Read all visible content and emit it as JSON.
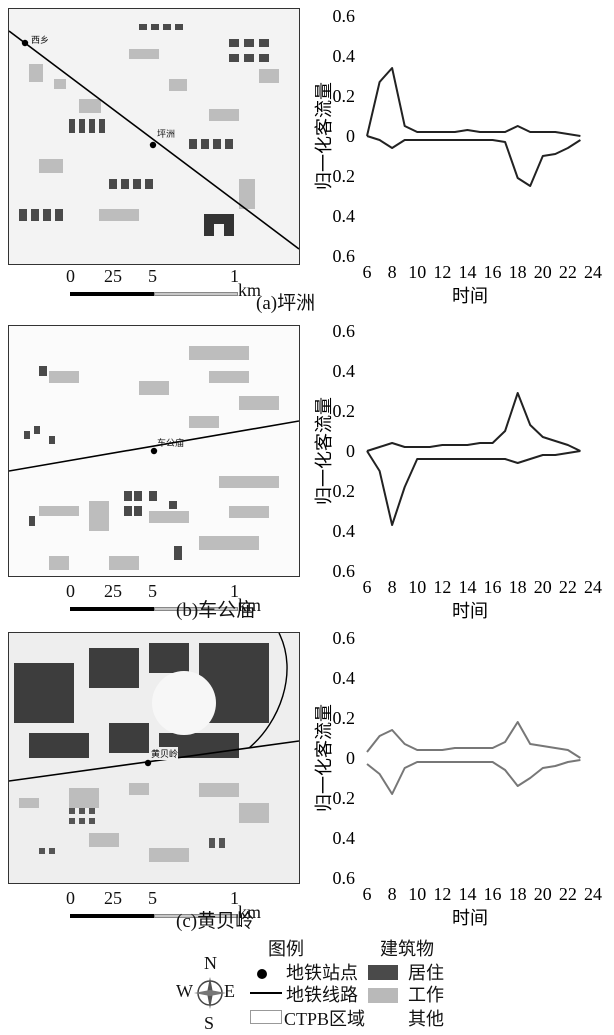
{
  "panels": [
    {
      "station": "坪洲",
      "caption": "(a)坪洲",
      "map_station_labels": [
        "西乡",
        "坪洲"
      ]
    },
    {
      "station": "车公庙",
      "caption": "(b)车公庙",
      "map_station_labels": [
        "车公庙"
      ]
    },
    {
      "station": "黄贝岭",
      "caption": "(c)黄贝岭",
      "map_station_labels": [
        "黄贝岭"
      ]
    }
  ],
  "scale": {
    "labels": [
      "0",
      "25",
      "5",
      "1"
    ],
    "unit": "km"
  },
  "legend": {
    "title": "图例",
    "buildings_title": "建筑物",
    "station": "地铁站点",
    "line": "地铁线路",
    "ctpb": "CTPB区域",
    "residential": "居住",
    "work": "工作",
    "other": "其他",
    "compass": {
      "n": "N",
      "s": "S",
      "w": "W",
      "e": "E"
    },
    "colors": {
      "residential": "#4a4a4a",
      "work": "#b9b9b9",
      "other": "#ffffff"
    }
  },
  "chart_data": [
    {
      "type": "line",
      "xlabel": "时间",
      "ylabel": "归一化客流量",
      "x_ticks": [
        "6",
        "8",
        "10",
        "12",
        "14",
        "16",
        "18",
        "20",
        "22",
        "24"
      ],
      "y_ticks": [
        "0.6",
        "0.4",
        "0.2",
        "0",
        "0.2",
        "0.4",
        "0.6"
      ],
      "xlim": [
        6,
        24
      ],
      "ylim": [
        -0.6,
        0.6
      ],
      "line_color": "#222222",
      "series": [
        {
          "x": [
            6,
            7,
            8,
            9,
            10,
            11,
            12,
            13,
            14,
            15,
            16,
            17,
            18,
            19,
            20,
            21,
            22,
            23
          ],
          "y": [
            0.0,
            0.27,
            0.34,
            0.05,
            0.02,
            0.02,
            0.02,
            0.02,
            0.03,
            0.02,
            0.02,
            0.02,
            0.05,
            0.02,
            0.02,
            0.02,
            0.01,
            0.0
          ]
        },
        {
          "x": [
            6,
            7,
            8,
            9,
            10,
            11,
            12,
            13,
            14,
            15,
            16,
            17,
            18,
            19,
            20,
            21,
            22,
            23
          ],
          "y": [
            0.0,
            -0.02,
            -0.06,
            -0.02,
            -0.02,
            -0.02,
            -0.02,
            -0.02,
            -0.02,
            -0.02,
            -0.02,
            -0.03,
            -0.21,
            -0.25,
            -0.1,
            -0.09,
            -0.06,
            -0.02
          ]
        }
      ]
    },
    {
      "type": "line",
      "xlabel": "时间",
      "ylabel": "归一化客流量",
      "x_ticks": [
        "6",
        "8",
        "10",
        "12",
        "14",
        "16",
        "18",
        "20",
        "22",
        "24"
      ],
      "y_ticks": [
        "0.6",
        "0.4",
        "0.2",
        "0",
        "0.2",
        "0.4",
        "0.6"
      ],
      "xlim": [
        6,
        24
      ],
      "ylim": [
        -0.6,
        0.6
      ],
      "line_color": "#222222",
      "series": [
        {
          "x": [
            6,
            7,
            8,
            9,
            10,
            11,
            12,
            13,
            14,
            15,
            16,
            17,
            18,
            19,
            20,
            21,
            22,
            23
          ],
          "y": [
            0.0,
            0.02,
            0.04,
            0.02,
            0.02,
            0.02,
            0.03,
            0.03,
            0.03,
            0.04,
            0.04,
            0.1,
            0.29,
            0.13,
            0.07,
            0.05,
            0.03,
            0.0
          ]
        },
        {
          "x": [
            6,
            7,
            8,
            9,
            10,
            11,
            12,
            13,
            14,
            15,
            16,
            17,
            18,
            19,
            20,
            21,
            22,
            23
          ],
          "y": [
            0.0,
            -0.1,
            -0.37,
            -0.18,
            -0.04,
            -0.04,
            -0.04,
            -0.04,
            -0.04,
            -0.04,
            -0.04,
            -0.04,
            -0.06,
            -0.04,
            -0.02,
            -0.02,
            -0.01,
            0.0
          ]
        }
      ]
    },
    {
      "type": "line",
      "xlabel": "时间",
      "ylabel": "归一化客流量",
      "x_ticks": [
        "6",
        "8",
        "10",
        "12",
        "14",
        "16",
        "18",
        "20",
        "22",
        "24"
      ],
      "y_ticks": [
        "0.6",
        "0.4",
        "0.2",
        "0",
        "0.2",
        "0.4",
        "0.6"
      ],
      "xlim": [
        6,
        24
      ],
      "ylim": [
        -0.6,
        0.6
      ],
      "line_color": "#777777",
      "series": [
        {
          "x": [
            6,
            7,
            8,
            9,
            10,
            11,
            12,
            13,
            14,
            15,
            16,
            17,
            18,
            19,
            20,
            21,
            22,
            23
          ],
          "y": [
            0.03,
            0.11,
            0.14,
            0.07,
            0.04,
            0.04,
            0.04,
            0.05,
            0.05,
            0.05,
            0.05,
            0.08,
            0.18,
            0.07,
            0.06,
            0.05,
            0.04,
            0.0
          ]
        },
        {
          "x": [
            6,
            7,
            8,
            9,
            10,
            11,
            12,
            13,
            14,
            15,
            16,
            17,
            18,
            19,
            20,
            21,
            22,
            23
          ],
          "y": [
            -0.03,
            -0.08,
            -0.18,
            -0.05,
            -0.02,
            -0.02,
            -0.02,
            -0.02,
            -0.02,
            -0.02,
            -0.02,
            -0.06,
            -0.14,
            -0.1,
            -0.05,
            -0.04,
            -0.02,
            -0.01
          ]
        }
      ]
    }
  ]
}
